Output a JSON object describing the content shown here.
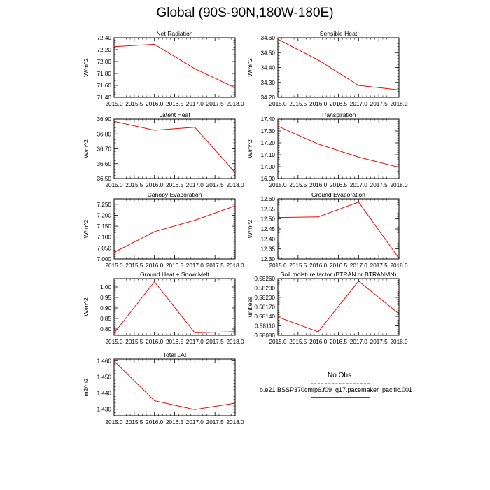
{
  "page": {
    "title": "Global (90S-90N,180W-180E)"
  },
  "legend": {
    "obs_label": "No Obs",
    "case_label": "b.e21.BSSP370cmip6.f09_g17.pacemaker_pacific.001",
    "obs_color": "#9a9ad6",
    "case_color": "#ff0000"
  },
  "chart_data": [
    {
      "type": "line",
      "title": "Net Radiation",
      "ylabel": "W/m^2",
      "x": [
        2015.0,
        2016.0,
        2017.0,
        2018.0
      ],
      "values": [
        72.25,
        72.29,
        71.88,
        71.56
      ],
      "xlim": [
        2015.0,
        2018.0
      ],
      "ylim": [
        71.4,
        72.4
      ],
      "xticks": [
        "2015.0",
        "2015.5",
        "2016.0",
        "2016.5",
        "2017.0",
        "2017.5",
        "2018.0"
      ],
      "yticks": [
        "71.40",
        "71.60",
        "71.80",
        "72.00",
        "72.20",
        "72.40"
      ]
    },
    {
      "type": "line",
      "title": "Sensible Heat",
      "ylabel": "W/m^2",
      "x": [
        2015.0,
        2016.0,
        2017.0,
        2018.0
      ],
      "values": [
        34.59,
        34.45,
        34.28,
        34.25
      ],
      "xlim": [
        2015.0,
        2018.0
      ],
      "ylim": [
        34.2,
        34.6
      ],
      "xticks": [
        "2015.0",
        "2015.5",
        "2016.0",
        "2016.5",
        "2017.0",
        "2017.5",
        "2018.0"
      ],
      "yticks": [
        "34.20",
        "34.30",
        "34.40",
        "34.50",
        "34.60"
      ]
    },
    {
      "type": "line",
      "title": "Latent Heat",
      "ylabel": "W/m^2",
      "x": [
        2015.0,
        2016.0,
        2017.0,
        2018.0
      ],
      "values": [
        36.885,
        36.825,
        36.845,
        36.54
      ],
      "xlim": [
        2015.0,
        2018.0
      ],
      "ylim": [
        36.5,
        36.9
      ],
      "xticks": [
        "2015.0",
        "2015.5",
        "2016.0",
        "2016.5",
        "2017.0",
        "2017.5",
        "2018.0"
      ],
      "yticks": [
        "36.50",
        "36.60",
        "36.70",
        "36.80",
        "36.90"
      ]
    },
    {
      "type": "line",
      "title": "Transpiration",
      "ylabel": "W/m^2",
      "x": [
        2015.0,
        2016.0,
        2017.0,
        2018.0
      ],
      "values": [
        17.34,
        17.19,
        17.08,
        16.995
      ],
      "xlim": [
        2015.0,
        2018.0
      ],
      "ylim": [
        16.9,
        17.4
      ],
      "xticks": [
        "2015.0",
        "2015.5",
        "2016.0",
        "2016.5",
        "2017.0",
        "2017.5",
        "2018.0"
      ],
      "yticks": [
        "16.90",
        "17.00",
        "17.10",
        "17.20",
        "17.30",
        "17.40"
      ]
    },
    {
      "type": "line",
      "title": "Canopy Evaporation",
      "ylabel": "W/m^2",
      "x": [
        2015.0,
        2016.0,
        2017.0,
        2018.0
      ],
      "values": [
        7.03,
        7.125,
        7.177,
        7.243
      ],
      "xlim": [
        2015.0,
        2018.0
      ],
      "ylim": [
        7.0,
        7.275
      ],
      "xticks": [
        "2015.0",
        "2015.5",
        "2016.0",
        "2016.5",
        "2017.0",
        "2017.5",
        "2018.0"
      ],
      "yticks": [
        "7.000",
        "7.050",
        "7.100",
        "7.150",
        "7.200",
        "7.250"
      ]
    },
    {
      "type": "line",
      "title": "Ground Evaporation",
      "ylabel": "W/m^2",
      "x": [
        2015.0,
        2016.0,
        2017.0,
        2018.0
      ],
      "values": [
        12.507,
        12.51,
        12.584,
        12.303
      ],
      "xlim": [
        2015.0,
        2018.0
      ],
      "ylim": [
        12.3,
        12.6
      ],
      "xticks": [
        "2015.0",
        "2015.5",
        "2016.0",
        "2016.5",
        "2017.0",
        "2017.5",
        "2018.0"
      ],
      "yticks": [
        "12.30",
        "12.35",
        "12.40",
        "12.45",
        "12.50",
        "12.55",
        "12.60"
      ]
    },
    {
      "type": "line",
      "title": "Ground Heat + Snow Melt",
      "ylabel": "W/m^2",
      "x": [
        2015.0,
        2016.0,
        2017.0,
        2018.0
      ],
      "values": [
        0.78,
        1.025,
        0.782,
        0.787
      ],
      "xlim": [
        2015.0,
        2018.0
      ],
      "ylim": [
        0.77,
        1.04
      ],
      "xticks": [
        "2015.0",
        "2015.5",
        "2016.0",
        "2016.5",
        "2017.0",
        "2017.5",
        "2018.0"
      ],
      "yticks": [
        "0.80",
        "0.85",
        "0.90",
        "0.95",
        "1.00"
      ]
    },
    {
      "type": "line",
      "title": "Soil moisture factor (BTRAN or BTRANMN)",
      "ylabel": "unitless",
      "x": [
        2015.0,
        2016.0,
        2017.0,
        2018.0
      ],
      "values": [
        0.58138,
        0.58091,
        0.58252,
        0.58148
      ],
      "xlim": [
        2015.0,
        2018.0
      ],
      "ylim": [
        0.5808,
        0.5826
      ],
      "xticks": [
        "2015.0",
        "2015.5",
        "2016.0",
        "2016.5",
        "2017.0",
        "2017.5",
        "2018.0"
      ],
      "yticks": [
        "0.58080",
        "0.58110",
        "0.58140",
        "0.58170",
        "0.58200",
        "0.58230",
        "0.58260"
      ]
    },
    {
      "type": "line",
      "title": "Total LAI",
      "ylabel": "m2/m2",
      "x": [
        2015.0,
        2016.0,
        2017.0,
        2018.0
      ],
      "values": [
        1.4598,
        1.4353,
        1.4298,
        1.4338
      ],
      "xlim": [
        2015.0,
        2018.0
      ],
      "ylim": [
        1.426,
        1.461
      ],
      "xticks": [
        "2015.0",
        "2015.5",
        "2016.0",
        "2016.5",
        "2017.0",
        "2017.5",
        "2018.0"
      ],
      "yticks": [
        "1.430",
        "1.440",
        "1.450",
        "1.460"
      ]
    }
  ]
}
